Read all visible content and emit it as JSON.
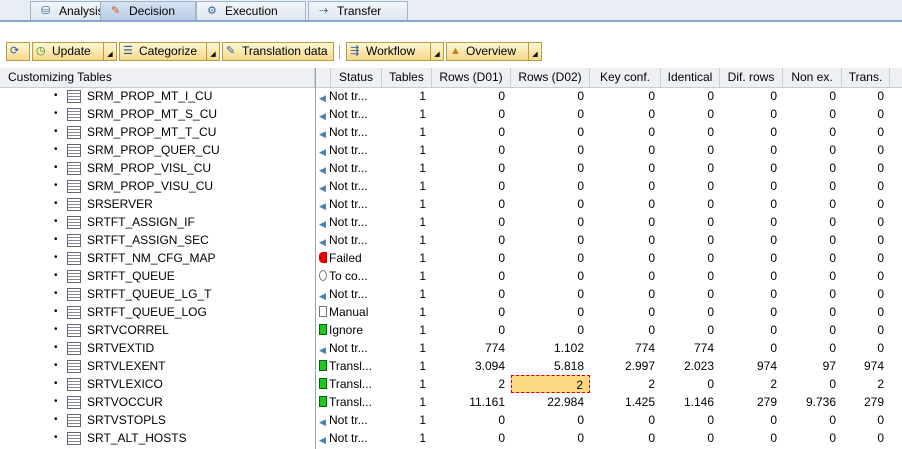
{
  "tabs": [
    {
      "label": "Analysis",
      "icon": "analysis-icon"
    },
    {
      "label": "Decision",
      "icon": "eraser-icon",
      "active": true
    },
    {
      "label": "Execution",
      "icon": "gears-icon"
    },
    {
      "label": "Transfer",
      "icon": "transfer-icon"
    }
  ],
  "toolbar": {
    "refresh_icon": "refresh-icon",
    "update": "Update",
    "categorize": "Categorize",
    "translation_data": "Translation data",
    "workflow": "Workflow",
    "overview": "Overview"
  },
  "columns": [
    "Customizing Tables",
    "",
    "Status",
    "Tables",
    "Rows (D01)",
    "Rows (D02)",
    "Key conf.",
    "Identical",
    "Dif. rows",
    "Non ex.",
    "Trans."
  ],
  "status_colors": {
    "failed": "#e00000",
    "ok": "#1ec81e",
    "not": "#4a7fb5"
  },
  "rows": [
    {
      "name": "SRM_PROP_MT_I_CU",
      "status": "Not tr...",
      "st": "not",
      "v": [
        "1",
        "0",
        "0",
        "0",
        "0",
        "0",
        "0",
        "0"
      ]
    },
    {
      "name": "SRM_PROP_MT_S_CU",
      "status": "Not tr...",
      "st": "not",
      "v": [
        "1",
        "0",
        "0",
        "0",
        "0",
        "0",
        "0",
        "0"
      ]
    },
    {
      "name": "SRM_PROP_MT_T_CU",
      "status": "Not tr...",
      "st": "not",
      "v": [
        "1",
        "0",
        "0",
        "0",
        "0",
        "0",
        "0",
        "0"
      ]
    },
    {
      "name": "SRM_PROP_QUER_CU",
      "status": "Not tr...",
      "st": "not",
      "v": [
        "1",
        "0",
        "0",
        "0",
        "0",
        "0",
        "0",
        "0"
      ]
    },
    {
      "name": "SRM_PROP_VISL_CU",
      "status": "Not tr...",
      "st": "not",
      "v": [
        "1",
        "0",
        "0",
        "0",
        "0",
        "0",
        "0",
        "0"
      ]
    },
    {
      "name": "SRM_PROP_VISU_CU",
      "status": "Not tr...",
      "st": "not",
      "v": [
        "1",
        "0",
        "0",
        "0",
        "0",
        "0",
        "0",
        "0"
      ]
    },
    {
      "name": "SRSERVER",
      "status": "Not tr...",
      "st": "not",
      "v": [
        "1",
        "0",
        "0",
        "0",
        "0",
        "0",
        "0",
        "0"
      ]
    },
    {
      "name": "SRTFT_ASSIGN_IF",
      "status": "Not tr...",
      "st": "not",
      "v": [
        "1",
        "0",
        "0",
        "0",
        "0",
        "0",
        "0",
        "0"
      ]
    },
    {
      "name": "SRTFT_ASSIGN_SEC",
      "status": "Not tr...",
      "st": "not",
      "v": [
        "1",
        "0",
        "0",
        "0",
        "0",
        "0",
        "0",
        "0"
      ]
    },
    {
      "name": "SRTFT_NM_CFG_MAP",
      "status": "Failed",
      "st": "failed",
      "v": [
        "1",
        "0",
        "0",
        "0",
        "0",
        "0",
        "0",
        "0"
      ]
    },
    {
      "name": "SRTFT_QUEUE",
      "status": "To co...",
      "st": "todo",
      "v": [
        "1",
        "0",
        "0",
        "0",
        "0",
        "0",
        "0",
        "0"
      ]
    },
    {
      "name": "SRTFT_QUEUE_LG_T",
      "status": "Not tr...",
      "st": "not",
      "v": [
        "1",
        "0",
        "0",
        "0",
        "0",
        "0",
        "0",
        "0"
      ]
    },
    {
      "name": "SRTFT_QUEUE_LOG",
      "status": "Manual",
      "st": "manual",
      "v": [
        "1",
        "0",
        "0",
        "0",
        "0",
        "0",
        "0",
        "0"
      ]
    },
    {
      "name": "SRTVCORREL",
      "status": "Ignore",
      "st": "ok",
      "v": [
        "1",
        "0",
        "0",
        "0",
        "0",
        "0",
        "0",
        "0"
      ]
    },
    {
      "name": "SRTVEXTID",
      "status": "Not tr...",
      "st": "not",
      "v": [
        "1",
        "774",
        "1.102",
        "774",
        "774",
        "0",
        "0",
        "0"
      ]
    },
    {
      "name": "SRTVLEXENT",
      "status": "Transl...",
      "st": "ok",
      "v": [
        "1",
        "3.094",
        "5.818",
        "2.997",
        "2.023",
        "974",
        "97",
        "974"
      ]
    },
    {
      "name": "SRTVLEXICO",
      "status": "Transl...",
      "st": "ok",
      "v": [
        "1",
        "2",
        "2",
        "2",
        "0",
        "2",
        "0",
        "2"
      ],
      "selected_col": 2
    },
    {
      "name": "SRTVOCCUR",
      "status": "Transl...",
      "st": "ok",
      "v": [
        "1",
        "11.161",
        "22.984",
        "1.425",
        "1.146",
        "279",
        "9.736",
        "279"
      ]
    },
    {
      "name": "SRTVSTOPLS",
      "status": "Not tr...",
      "st": "not",
      "v": [
        "1",
        "0",
        "0",
        "0",
        "0",
        "0",
        "0",
        "0"
      ]
    },
    {
      "name": "SRT_ALT_HOSTS",
      "status": "Not tr...",
      "st": "not",
      "v": [
        "1",
        "0",
        "0",
        "0",
        "0",
        "0",
        "0",
        "0"
      ]
    }
  ]
}
